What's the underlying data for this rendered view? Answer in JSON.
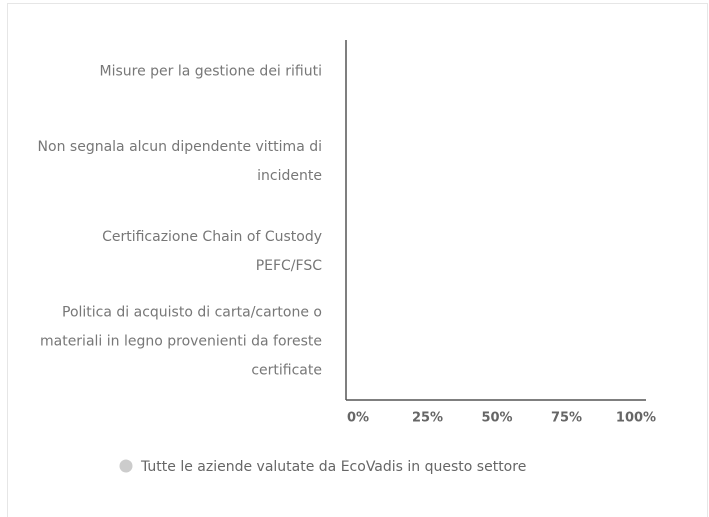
{
  "chart_data": {
    "type": "bar",
    "orientation": "horizontal",
    "categories": [
      "Misure per la gestione dei rifiuti",
      "Non segnala alcun dipendente vittima di incidente",
      "Certificazione Chain of Custody PEFC/FSC",
      "Politica di acquisto di carta/cartone o materiali in legno provenienti da foreste certificate"
    ],
    "series": [
      {
        "name": "Tutte le aziende valutate da EcoVadis in questo settore",
        "color": "#cccccc",
        "values": [
          0,
          0,
          0,
          0
        ]
      }
    ],
    "xlim": [
      0,
      100
    ],
    "xticks": [
      {
        "value": 0,
        "label": "0%"
      },
      {
        "value": 25,
        "label": "25%"
      },
      {
        "value": 50,
        "label": "50%"
      },
      {
        "value": 75,
        "label": "75%"
      },
      {
        "value": 100,
        "label": "100%"
      }
    ]
  }
}
